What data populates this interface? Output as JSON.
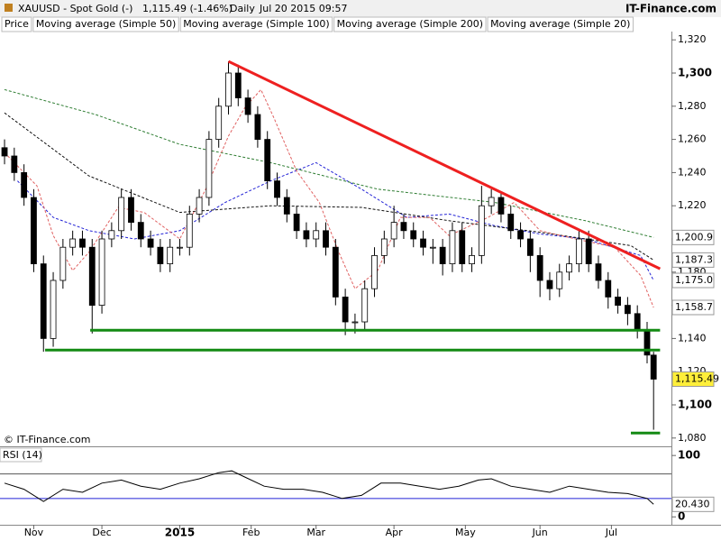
{
  "header": {
    "symbol": "XAUUSD - Spot Gold (-)",
    "quote": "1,115.49 (-1.46%)",
    "period": "Daily",
    "datetime": "Jul 20 2015 09:57",
    "brand": "IT-Finance.com"
  },
  "chart_data": [
    {
      "type": "candlestick",
      "name": "Price",
      "watermark": "© IT-Finance.com",
      "up_color": "#ffffff",
      "down_color": "#000000",
      "x": [
        0,
        3,
        6,
        9,
        12,
        15,
        18,
        21,
        24,
        27,
        30,
        33,
        36,
        39,
        42,
        45,
        48,
        51,
        54,
        57,
        60,
        63,
        66,
        69,
        72,
        75,
        78,
        81,
        84,
        87,
        90,
        93,
        96,
        99,
        102,
        105,
        108,
        111,
        114,
        117,
        120,
        123,
        126,
        129,
        132,
        135,
        138,
        141,
        144,
        147,
        150,
        153,
        156,
        159,
        162,
        165,
        168,
        171,
        174,
        177,
        180,
        183,
        186,
        189,
        192,
        195,
        198,
        200
      ],
      "open": [
        1255,
        1250,
        1240,
        1225,
        1185,
        1140,
        1175,
        1195,
        1200,
        1195,
        1160,
        1200,
        1205,
        1225,
        1210,
        1200,
        1195,
        1185,
        1195,
        1195,
        1215,
        1225,
        1260,
        1280,
        1300,
        1285,
        1275,
        1260,
        1235,
        1225,
        1215,
        1205,
        1200,
        1205,
        1195,
        1165,
        1150,
        1150,
        1170,
        1190,
        1200,
        1210,
        1205,
        1200,
        1195,
        1195,
        1185,
        1205,
        1185,
        1190,
        1220,
        1225,
        1215,
        1205,
        1200,
        1190,
        1175,
        1170,
        1180,
        1185,
        1200,
        1185,
        1175,
        1165,
        1160,
        1155,
        1145,
        1130
      ],
      "high": [
        1260,
        1255,
        1245,
        1230,
        1190,
        1180,
        1200,
        1205,
        1205,
        1200,
        1205,
        1210,
        1230,
        1230,
        1215,
        1205,
        1200,
        1200,
        1200,
        1220,
        1230,
        1265,
        1285,
        1307,
        1305,
        1290,
        1280,
        1265,
        1240,
        1230,
        1220,
        1210,
        1210,
        1210,
        1200,
        1170,
        1155,
        1175,
        1195,
        1205,
        1220,
        1215,
        1210,
        1205,
        1200,
        1200,
        1210,
        1210,
        1195,
        1232,
        1230,
        1228,
        1220,
        1210,
        1205,
        1195,
        1180,
        1185,
        1190,
        1205,
        1205,
        1190,
        1180,
        1170,
        1165,
        1160,
        1150,
        1132
      ],
      "low": [
        1245,
        1235,
        1220,
        1180,
        1132,
        1135,
        1170,
        1190,
        1190,
        1143,
        1155,
        1195,
        1200,
        1205,
        1195,
        1190,
        1180,
        1180,
        1190,
        1190,
        1210,
        1220,
        1255,
        1275,
        1280,
        1270,
        1255,
        1230,
        1220,
        1210,
        1200,
        1195,
        1195,
        1190,
        1160,
        1142,
        1143,
        1145,
        1165,
        1185,
        1195,
        1200,
        1195,
        1190,
        1185,
        1178,
        1180,
        1180,
        1180,
        1185,
        1215,
        1210,
        1200,
        1195,
        1180,
        1165,
        1163,
        1165,
        1175,
        1180,
        1180,
        1170,
        1158,
        1155,
        1148,
        1140,
        1125,
        1085
      ],
      "close": [
        1250,
        1240,
        1225,
        1185,
        1140,
        1175,
        1195,
        1200,
        1195,
        1160,
        1200,
        1205,
        1225,
        1210,
        1200,
        1195,
        1185,
        1195,
        1195,
        1215,
        1225,
        1260,
        1280,
        1300,
        1285,
        1275,
        1260,
        1235,
        1225,
        1215,
        1205,
        1200,
        1205,
        1195,
        1165,
        1150,
        1150,
        1170,
        1190,
        1200,
        1210,
        1205,
        1200,
        1195,
        1195,
        1185,
        1205,
        1185,
        1190,
        1220,
        1225,
        1215,
        1205,
        1200,
        1190,
        1175,
        1170,
        1180,
        1185,
        1200,
        1185,
        1175,
        1165,
        1160,
        1155,
        1145,
        1130,
        1115.49
      ],
      "close_label": "1,115.49",
      "close_label_color": "#ffef3a",
      "series": [
        {
          "name": "Moving average (Simple 50)",
          "color": "#2323d6",
          "x": [
            4,
            15,
            26,
            40,
            54,
            68,
            82,
            96,
            110,
            124,
            137,
            151,
            165,
            179,
            196,
            200
          ],
          "values": [
            1235,
            1213,
            1205,
            1200,
            1205,
            1222,
            1235,
            1246,
            1230,
            1213,
            1215,
            1208,
            1203,
            1200,
            1190,
            1175.0
          ],
          "end_label": "1,175.0"
        },
        {
          "name": "Moving average (Simple 100)",
          "color": "#111111",
          "x": [
            0,
            26,
            54,
            82,
            110,
            137,
            165,
            193,
            200
          ],
          "values": [
            1276,
            1238,
            1216,
            1220,
            1219,
            1211,
            1204,
            1196,
            1187.3
          ],
          "end_label": "1,187.3"
        },
        {
          "name": "Moving average (Simple 200)",
          "color": "#2e7d32",
          "x": [
            0,
            28,
            54,
            82,
            115,
            151,
            179,
            200
          ],
          "values": [
            1290,
            1275,
            1257,
            1246,
            1230,
            1222,
            1211,
            1200.9
          ],
          "end_label": "1,200.9"
        },
        {
          "name": "Moving average (Simple 20)",
          "color": "#e06060",
          "x": [
            0,
            10,
            15,
            21,
            26,
            35,
            43,
            54,
            62,
            69,
            74,
            79,
            83,
            90,
            97,
            103,
            108,
            115,
            122,
            131,
            137,
            149,
            157,
            165,
            176,
            188,
            196,
            200
          ],
          "values": [
            1252,
            1232,
            1202,
            1181,
            1192,
            1219,
            1216,
            1200,
            1230,
            1262,
            1279,
            1290,
            1273,
            1241,
            1222,
            1192,
            1170,
            1181,
            1213,
            1213,
            1202,
            1213,
            1222,
            1205,
            1200,
            1195,
            1178,
            1158.7
          ],
          "end_label": "1,158.7"
        }
      ],
      "trendlines": [
        {
          "color": "#ee2020",
          "x": [
            69,
            202
          ],
          "y": [
            1307,
            1182
          ]
        },
        {
          "color": "#138a13",
          "x": [
            26.4,
            202
          ],
          "y": [
            1145,
            1145
          ]
        },
        {
          "color": "#138a13",
          "x": [
            12.5,
            202
          ],
          "y": [
            1133,
            1133
          ]
        },
        {
          "color": "#138a13",
          "x": [
            193,
            202
          ],
          "y": [
            1083,
            1083
          ]
        }
      ],
      "xlim": [
        -1.4,
        205.5
      ],
      "ylim": [
        1075,
        1325
      ],
      "xticks": [
        {
          "value": 9,
          "label": "Nov"
        },
        {
          "value": 30,
          "label": "Dec"
        },
        {
          "value": 54,
          "label": "2015"
        },
        {
          "value": 76,
          "label": "Feb"
        },
        {
          "value": 96,
          "label": "Mar"
        },
        {
          "value": 120,
          "label": "Apr"
        },
        {
          "value": 142,
          "label": "May"
        },
        {
          "value": 165,
          "label": "Jun"
        },
        {
          "value": 187,
          "label": "Jul"
        }
      ],
      "yticks": [
        {
          "value": 1080,
          "label": "1,080"
        },
        {
          "value": 1100,
          "label": "1,100"
        },
        {
          "value": 1120,
          "label": "1,120"
        },
        {
          "value": 1140,
          "label": "1,140"
        },
        {
          "value": 1160,
          "label": "1,160"
        },
        {
          "value": 1180,
          "label": "1,180"
        },
        {
          "value": 1200,
          "label": "1,200"
        },
        {
          "value": 1220,
          "label": "1,220"
        },
        {
          "value": 1240,
          "label": "1,240"
        },
        {
          "value": 1260,
          "label": "1,260"
        },
        {
          "value": 1280,
          "label": "1,280"
        },
        {
          "value": 1300,
          "label": "1,300"
        },
        {
          "value": 1320,
          "label": "1,320"
        }
      ]
    },
    {
      "type": "line",
      "title": "RSI (14)",
      "color": "#000000",
      "x": [
        0,
        6,
        12,
        18,
        24,
        30,
        36,
        42,
        48,
        54,
        60,
        66,
        70,
        74,
        80,
        86,
        92,
        98,
        104,
        110,
        116,
        122,
        128,
        134,
        140,
        146,
        150,
        156,
        162,
        168,
        174,
        180,
        186,
        192,
        198,
        200
      ],
      "values": [
        55,
        45,
        25,
        45,
        40,
        55,
        60,
        50,
        45,
        55,
        62,
        72,
        75,
        65,
        50,
        45,
        45,
        40,
        30,
        35,
        55,
        55,
        50,
        45,
        50,
        60,
        62,
        50,
        45,
        40,
        50,
        45,
        40,
        38,
        30,
        20.43
      ],
      "value_label": "20.430",
      "levels": [
        30,
        70
      ],
      "xlim": [
        -1.4,
        205.5
      ],
      "ylim": [
        -7,
        112
      ],
      "yticks": [
        0,
        100
      ]
    }
  ]
}
